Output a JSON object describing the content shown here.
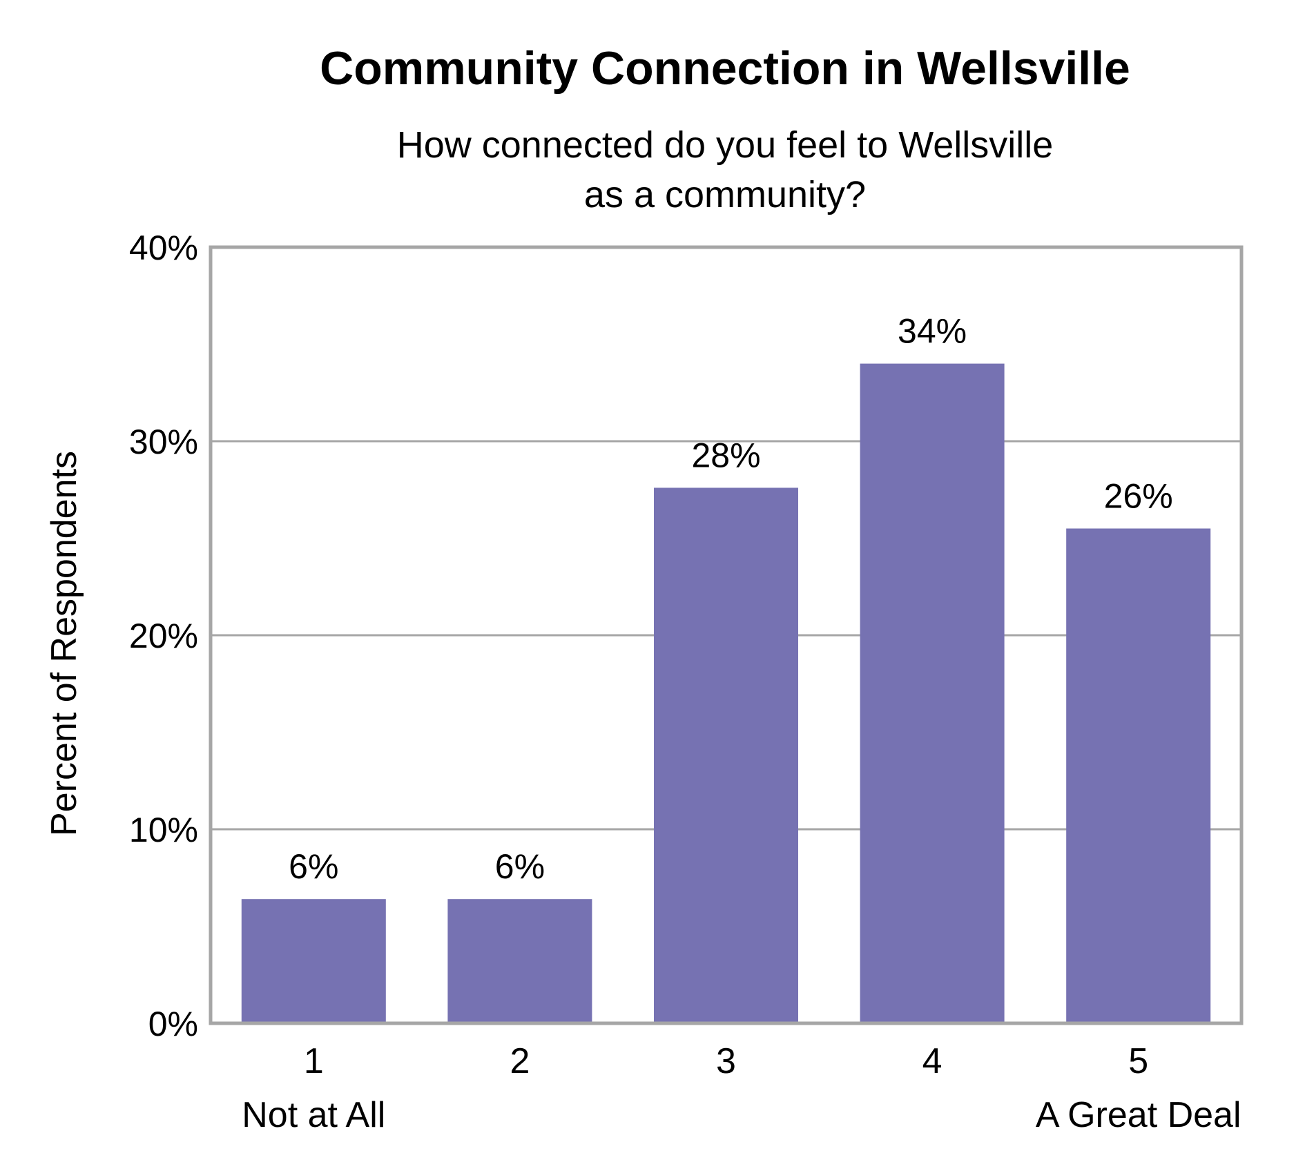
{
  "chart_data": {
    "type": "bar",
    "title": "Community Connection in Wellsville",
    "subtitle": [
      "How connected do you feel to Wellsville",
      "as a community?"
    ],
    "ylabel": "Percent of Respondents",
    "xlabel": "",
    "categories": [
      "1",
      "2",
      "3",
      "4",
      "5"
    ],
    "category_sublabels": [
      "Not at All",
      "",
      "",
      "",
      "A Great Deal"
    ],
    "values": [
      6.4,
      6.4,
      27.6,
      34.0,
      25.5
    ],
    "data_labels": [
      "6%",
      "6%",
      "28%",
      "34%",
      "26%"
    ],
    "ylim": [
      0,
      40
    ],
    "yticks": [
      "0%",
      "10%",
      "20%",
      "30%",
      "40%"
    ],
    "ytick_values": [
      0,
      10,
      20,
      30,
      40
    ],
    "grid": true,
    "bar_color": "#7672b2",
    "grid_color": "#a6a6a6",
    "frame_color": "#a6a6a6"
  }
}
